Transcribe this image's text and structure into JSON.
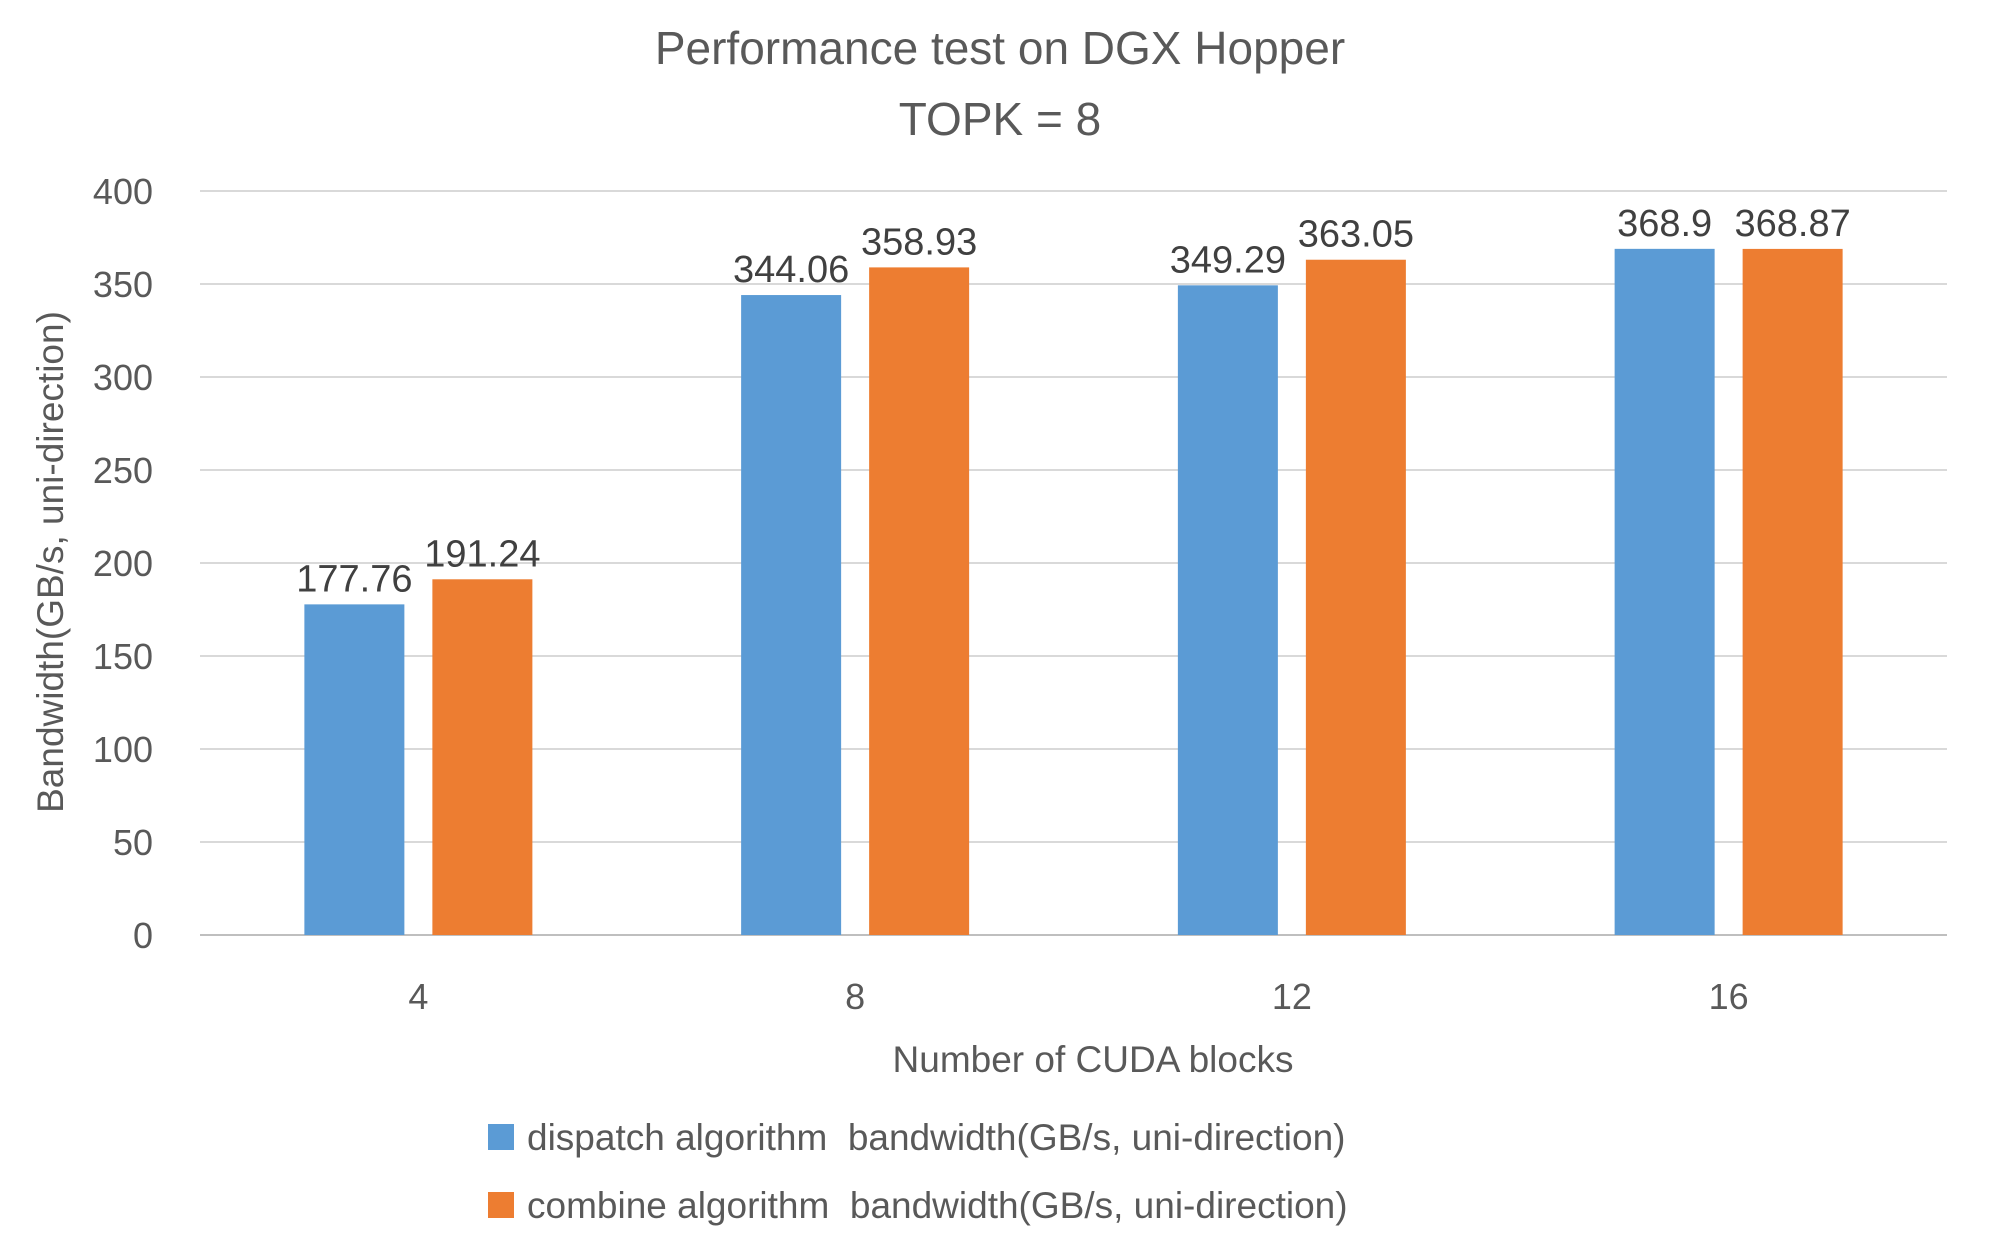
{
  "chart_data": {
    "type": "bar",
    "title": "Performance test on DGX Hopper",
    "subtitle": "TOPK = 8",
    "xlabel": "Number of CUDA blocks",
    "ylabel": "Bandwidth(GB/s, uni-direction)",
    "categories": [
      "4",
      "8",
      "12",
      "16"
    ],
    "ylim": [
      0,
      400
    ],
    "yticks": [
      0,
      50,
      100,
      150,
      200,
      250,
      300,
      350,
      400
    ],
    "grid": true,
    "legend_position": "bottom",
    "series": [
      {
        "name": "dispatch algorithm  bandwidth(GB/s, uni-direction)",
        "values": [
          177.76,
          344.06,
          349.29,
          368.9
        ],
        "labels": [
          "177.76",
          "344.06",
          "349.29",
          "368.9"
        ],
        "color": "#5b9bd5"
      },
      {
        "name": "combine algorithm  bandwidth(GB/s, uni-direction)",
        "values": [
          191.24,
          358.93,
          363.05,
          368.87
        ],
        "labels": [
          "191.24",
          "358.93",
          "363.05",
          "368.87"
        ],
        "color": "#ed7d31"
      }
    ]
  }
}
